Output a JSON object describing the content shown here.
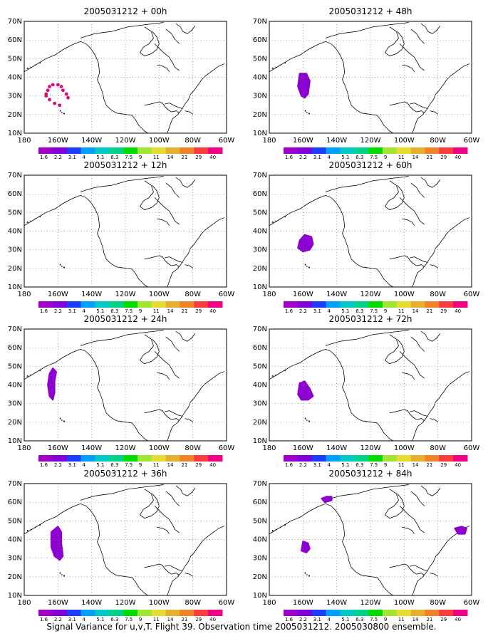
{
  "panels": [
    {
      "title": "2005031212 + 00h"
    },
    {
      "title": "2005031212 + 48h"
    },
    {
      "title": "2005031212 + 12h"
    },
    {
      "title": "2005031212 + 60h"
    },
    {
      "title": "2005031212 + 24h"
    },
    {
      "title": "2005031212 + 72h"
    },
    {
      "title": "2005031212 + 36h"
    },
    {
      "title": "2005031212 + 84h"
    }
  ],
  "lat_labels": [
    "70N",
    "60N",
    "50N",
    "40N",
    "30N",
    "20N",
    "10N"
  ],
  "lon_labels": [
    "180",
    "160W",
    "140W",
    "120W",
    "100W",
    "80W",
    "60W"
  ],
  "colorbar": {
    "labels": [
      "1.6",
      "2.2",
      "3.1",
      "4",
      "5.1",
      "6.3",
      "7.5",
      "9",
      "11",
      "14",
      "21",
      "29",
      "40"
    ],
    "colors": [
      "#a000c8",
      "#8200dc",
      "#1e3cff",
      "#00a0ff",
      "#00c8c8",
      "#00d28c",
      "#00dc00",
      "#a0e632",
      "#e6dc32",
      "#e6af2d",
      "#f08228",
      "#fa3c3c",
      "#f00082"
    ]
  },
  "caption": "Signal Variance for u,v,T. Flight 39. Observation time 2005031212. 2005030800 ensemble."
}
